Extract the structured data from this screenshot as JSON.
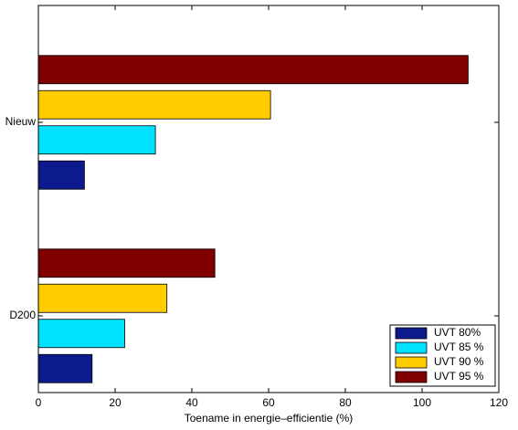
{
  "chart_data": {
    "type": "barh",
    "xlabel": "Toename in energie–efficientie (%)",
    "categories": [
      "D200",
      "Nieuw"
    ],
    "series": [
      {
        "name": "UVT 80%",
        "color": "#0c1a8e",
        "values": [
          14,
          12
        ]
      },
      {
        "name": "UVT 85 %",
        "color": "#00e1ff",
        "values": [
          22.5,
          30.5
        ]
      },
      {
        "name": "UVT 90 %",
        "color": "#ffcc00",
        "values": [
          33.5,
          60.5
        ]
      },
      {
        "name": "UVT 95 %",
        "color": "#800000",
        "values": [
          46,
          112
        ]
      }
    ],
    "xlim": [
      0,
      120
    ],
    "xticks": [
      0,
      20,
      40,
      60,
      80,
      100,
      120
    ],
    "legend": "lower right"
  }
}
